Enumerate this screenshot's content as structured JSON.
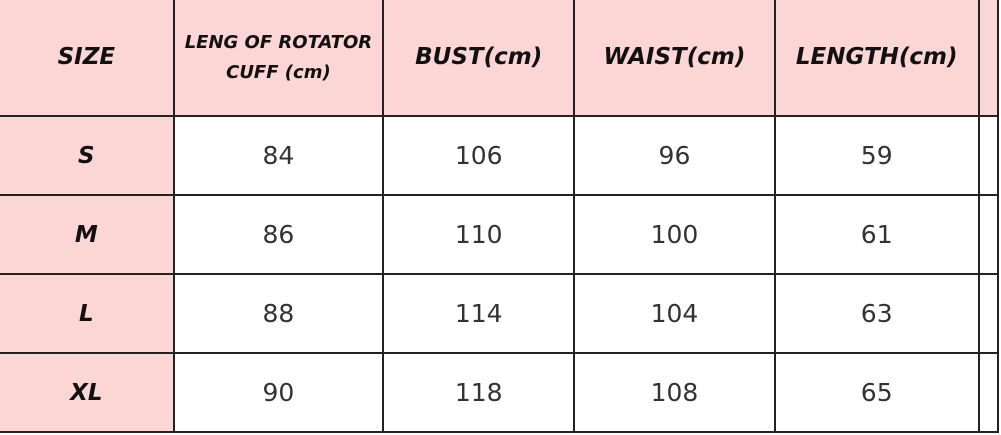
{
  "colors": {
    "header_bg": "#fcd6d5",
    "border": "#222222"
  },
  "headers": [
    "SIZE",
    "LENG OF ROTATOR CUFF (cm)",
    "BUST(cm)",
    "WAIST(cm)",
    "LENGTH(cm)"
  ],
  "rows": [
    [
      "S",
      "84",
      "106",
      "96",
      "59"
    ],
    [
      "M",
      "86",
      "110",
      "100",
      "61"
    ],
    [
      "L",
      "88",
      "114",
      "104",
      "63"
    ],
    [
      "XL",
      "90",
      "118",
      "108",
      "65"
    ]
  ]
}
